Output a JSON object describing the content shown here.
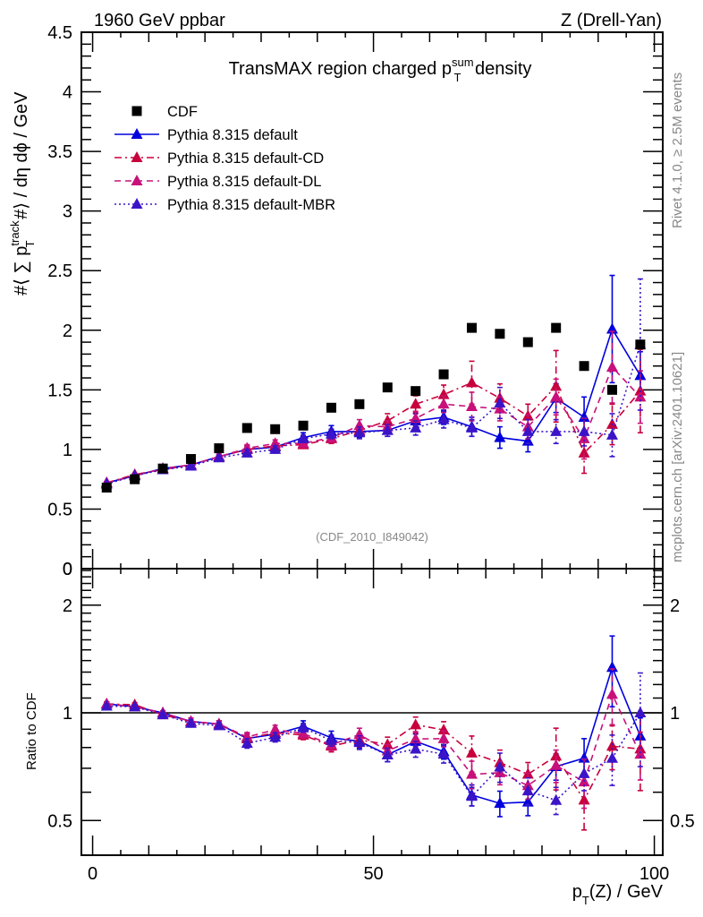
{
  "header": {
    "left": "1960 GeV ppbar",
    "right": "Z (Drell-Yan)"
  },
  "side_labels": {
    "rivet": "Rivet 4.1.0, ≥ 2.5M events",
    "mcplots": "mcplots.cern.ch [arXiv:2401.10621]"
  },
  "chart_data": [
    {
      "type": "scatter",
      "panel": "main",
      "title": "TransMAX region charged p_T^sum density",
      "title_parts": {
        "pre": "TransMAX region charged p",
        "sup": "sum",
        "sub": "T",
        "post": " density"
      },
      "ylabel": "#⟨ ∑ p_T^track #⟩ / dη dϕ / GeV",
      "ylabel_parts": {
        "pre": "#⟨ ∑ p",
        "sup": "track",
        "sub": "T",
        "post": " #⟩ / dη dϕ / GeV"
      },
      "xlabel": "",
      "xlim": [
        -2,
        101.5
      ],
      "ylim": [
        0,
        4.5
      ],
      "yticks": [
        0,
        0.5,
        1,
        1.5,
        2,
        2.5,
        3,
        3.5,
        4,
        4.5
      ],
      "ytick_labels": [
        "0",
        "0.5",
        "1",
        "1.5",
        "2",
        "2.5",
        "3",
        "3.5",
        "4",
        "4.5"
      ],
      "annotation": "(CDF_2010_I849042)",
      "legend_position": "top-left",
      "x": [
        2.5,
        7.5,
        12.5,
        17.5,
        22.5,
        27.5,
        32.5,
        37.5,
        42.5,
        47.5,
        52.5,
        57.5,
        62.5,
        67.5,
        72.5,
        77.5,
        82.5,
        87.5,
        92.5,
        97.5
      ],
      "series": [
        {
          "name": "CDF",
          "color": "#000000",
          "marker": "square",
          "line": "none",
          "values": [
            0.68,
            0.75,
            0.84,
            0.92,
            1.01,
            1.18,
            1.17,
            1.2,
            1.35,
            1.38,
            1.52,
            1.49,
            1.63,
            2.02,
            1.97,
            1.9,
            2.02,
            1.7,
            1.5,
            1.88
          ],
          "errors": [
            0.01,
            0.01,
            0.01,
            0.01,
            0.01,
            0.01,
            0.01,
            0.01,
            0.01,
            0.01,
            0.01,
            0.01,
            0.01,
            0.01,
            0.01,
            0.01,
            0.01,
            0.01,
            0.01,
            0.01
          ]
        },
        {
          "name": "Pythia 8.315 default",
          "color": "#0000dd",
          "marker": "triangle",
          "line": "solid",
          "values": [
            0.72,
            0.78,
            0.84,
            0.87,
            0.94,
            1.0,
            1.02,
            1.1,
            1.15,
            1.15,
            1.16,
            1.24,
            1.27,
            1.19,
            1.1,
            1.07,
            1.43,
            1.27,
            2.01,
            1.62
          ],
          "errors": [
            0.01,
            0.01,
            0.01,
            0.02,
            0.02,
            0.03,
            0.03,
            0.04,
            0.05,
            0.05,
            0.05,
            0.06,
            0.06,
            0.08,
            0.09,
            0.09,
            0.12,
            0.17,
            0.45,
            0.2
          ]
        },
        {
          "name": "Pythia 8.315 default-CD",
          "color": "#c8003c",
          "marker": "triangle",
          "line": "dashdot",
          "values": [
            0.72,
            0.79,
            0.83,
            0.87,
            0.94,
            1.0,
            1.03,
            1.04,
            1.09,
            1.16,
            1.24,
            1.38,
            1.46,
            1.56,
            1.43,
            1.28,
            1.53,
            0.97,
            1.21,
            1.49
          ],
          "errors": [
            0.01,
            0.01,
            0.01,
            0.02,
            0.02,
            0.03,
            0.03,
            0.03,
            0.04,
            0.05,
            0.06,
            0.07,
            0.08,
            0.18,
            0.12,
            0.1,
            0.3,
            0.17,
            0.17,
            0.35
          ]
        },
        {
          "name": "Pythia 8.315 default-DL",
          "color": "#c8107a",
          "marker": "triangle",
          "line": "dashed",
          "values": [
            0.72,
            0.78,
            0.84,
            0.87,
            0.94,
            1.01,
            1.05,
            1.05,
            1.1,
            1.2,
            1.19,
            1.26,
            1.38,
            1.36,
            1.34,
            1.19,
            1.44,
            1.09,
            1.69,
            1.44
          ],
          "errors": [
            0.01,
            0.01,
            0.01,
            0.02,
            0.02,
            0.03,
            0.03,
            0.03,
            0.04,
            0.05,
            0.05,
            0.06,
            0.07,
            0.12,
            0.1,
            0.1,
            0.15,
            0.17,
            0.3,
            0.22
          ]
        },
        {
          "name": "Pythia 8.315 default-MBR",
          "color": "#3c14c8",
          "marker": "triangle",
          "line": "dotted",
          "values": [
            0.71,
            0.78,
            0.83,
            0.86,
            0.93,
            0.97,
            1.0,
            1.09,
            1.13,
            1.14,
            1.16,
            1.18,
            1.25,
            1.18,
            1.39,
            1.15,
            1.15,
            1.15,
            1.12,
            1.88
          ],
          "errors": [
            0.01,
            0.01,
            0.01,
            0.02,
            0.02,
            0.03,
            0.03,
            0.03,
            0.04,
            0.05,
            0.05,
            0.06,
            0.07,
            0.07,
            0.13,
            0.1,
            0.1,
            0.12,
            0.18,
            0.55
          ]
        }
      ]
    },
    {
      "type": "scatter",
      "panel": "ratio",
      "ylabel": "Ratio to CDF",
      "xlabel": "p_T(Z) / GeV",
      "xlabel_parts": {
        "pre": "p",
        "sub": "T",
        "post": "(Z) / GeV"
      },
      "yscale": "log",
      "ylim": [
        0.4,
        2.53
      ],
      "yticks": [
        0.5,
        1,
        2
      ],
      "ytick_labels": [
        "0.5",
        "1",
        "2"
      ],
      "xticks": [
        0,
        50,
        100
      ],
      "xtick_labels": [
        "0",
        "50",
        "100"
      ],
      "reference_line": 1,
      "note": "ratio = model / CDF for each series in the main panel"
    }
  ]
}
